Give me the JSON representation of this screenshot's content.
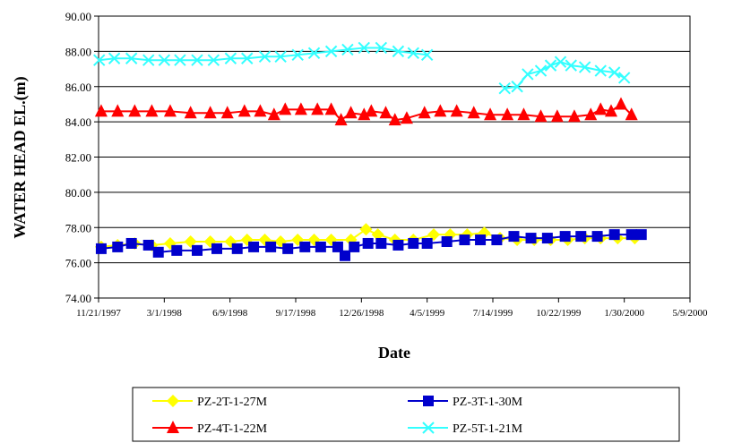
{
  "chart_data": {
    "type": "line",
    "title": "",
    "xlabel": "Date",
    "ylabel": "WATER HEAD EL.(m)",
    "ylim": [
      74,
      90
    ],
    "yticks": [
      "74.00",
      "76.00",
      "78.00",
      "80.00",
      "82.00",
      "84.00",
      "86.00",
      "88.00",
      "90.00"
    ],
    "xlim": [
      "1997-11-21",
      "2000-05-09"
    ],
    "xticks": [
      "11/21/1997",
      "3/1/1998",
      "6/9/1998",
      "9/17/1998",
      "12/26/1998",
      "4/5/1999",
      "7/14/1999",
      "10/22/1999",
      "1/30/2000",
      "5/9/2000"
    ],
    "grid": "horizontal",
    "legend": "bottom",
    "series": [
      {
        "name": "PZ-2T-1-27M",
        "color": "#FFFF00",
        "marker": "diamond",
        "points": [
          [
            "1997-11-25",
            76.9
          ],
          [
            "1997-12-20",
            77.0
          ],
          [
            "1998-01-15",
            77.1
          ],
          [
            "1998-02-10",
            77.0
          ],
          [
            "1998-03-10",
            77.1
          ],
          [
            "1998-04-10",
            77.2
          ],
          [
            "1998-05-10",
            77.2
          ],
          [
            "1998-06-10",
            77.2
          ],
          [
            "1998-07-05",
            77.3
          ],
          [
            "1998-08-01",
            77.3
          ],
          [
            "1998-08-25",
            77.2
          ],
          [
            "1998-09-20",
            77.3
          ],
          [
            "1998-10-15",
            77.3
          ],
          [
            "1998-11-10",
            77.3
          ],
          [
            "1998-12-10",
            77.3
          ],
          [
            "1999-01-02",
            77.9
          ],
          [
            "1999-01-20",
            77.6
          ],
          [
            "1999-02-15",
            77.3
          ],
          [
            "1999-03-15",
            77.3
          ],
          [
            "1999-04-15",
            77.6
          ],
          [
            "1999-05-10",
            77.6
          ],
          [
            "1999-06-05",
            77.6
          ],
          [
            "1999-07-01",
            77.7
          ],
          [
            "1999-07-25",
            77.4
          ],
          [
            "1999-08-20",
            77.3
          ],
          [
            "1999-09-15",
            77.3
          ],
          [
            "1999-10-10",
            77.3
          ],
          [
            "1999-11-05",
            77.3
          ],
          [
            "1999-12-01",
            77.4
          ],
          [
            "1999-12-25",
            77.4
          ],
          [
            "2000-01-20",
            77.4
          ],
          [
            "2000-02-15",
            77.4
          ]
        ]
      },
      {
        "name": "PZ-3T-1-30M",
        "color": "#0000CC",
        "marker": "square",
        "points": [
          [
            "1997-11-25",
            76.8
          ],
          [
            "1997-12-20",
            76.9
          ],
          [
            "1998-01-10",
            77.1
          ],
          [
            "1998-02-05",
            77.0
          ],
          [
            "1998-02-20",
            76.6
          ],
          [
            "1998-03-20",
            76.7
          ],
          [
            "1998-04-20",
            76.7
          ],
          [
            "1998-05-20",
            76.8
          ],
          [
            "1998-06-20",
            76.8
          ],
          [
            "1998-07-15",
            76.9
          ],
          [
            "1998-08-10",
            76.9
          ],
          [
            "1998-09-05",
            76.8
          ],
          [
            "1998-10-01",
            76.9
          ],
          [
            "1998-10-25",
            76.9
          ],
          [
            "1998-11-20",
            76.9
          ],
          [
            "1998-12-01",
            76.4
          ],
          [
            "1998-12-15",
            76.9
          ],
          [
            "1999-01-05",
            77.1
          ],
          [
            "1999-01-25",
            77.1
          ],
          [
            "1999-02-20",
            77.0
          ],
          [
            "1999-03-15",
            77.1
          ],
          [
            "1999-04-05",
            77.1
          ],
          [
            "1999-05-05",
            77.2
          ],
          [
            "1999-06-01",
            77.3
          ],
          [
            "1999-06-25",
            77.3
          ],
          [
            "1999-07-20",
            77.3
          ],
          [
            "1999-08-15",
            77.5
          ],
          [
            "1999-09-10",
            77.4
          ],
          [
            "1999-10-05",
            77.4
          ],
          [
            "1999-11-01",
            77.5
          ],
          [
            "1999-11-25",
            77.5
          ],
          [
            "1999-12-20",
            77.5
          ],
          [
            "2000-01-15",
            77.6
          ],
          [
            "2000-02-10",
            77.6
          ],
          [
            "2000-02-25",
            77.6
          ]
        ]
      },
      {
        "name": "PZ-4T-1-22M",
        "color": "#FF0000",
        "marker": "triangle",
        "points": [
          [
            "1997-11-25",
            84.6
          ],
          [
            "1997-12-20",
            84.6
          ],
          [
            "1998-01-15",
            84.6
          ],
          [
            "1998-02-10",
            84.6
          ],
          [
            "1998-03-10",
            84.6
          ],
          [
            "1998-04-10",
            84.5
          ],
          [
            "1998-05-10",
            84.5
          ],
          [
            "1998-06-05",
            84.5
          ],
          [
            "1998-07-01",
            84.6
          ],
          [
            "1998-07-25",
            84.6
          ],
          [
            "1998-08-15",
            84.4
          ],
          [
            "1998-09-01",
            84.7
          ],
          [
            "1998-09-25",
            84.7
          ],
          [
            "1998-10-20",
            84.7
          ],
          [
            "1998-11-10",
            84.7
          ],
          [
            "1998-11-25",
            84.1
          ],
          [
            "1998-12-10",
            84.5
          ],
          [
            "1998-12-30",
            84.4
          ],
          [
            "1999-01-10",
            84.6
          ],
          [
            "1999-02-01",
            84.5
          ],
          [
            "1999-02-15",
            84.1
          ],
          [
            "1999-03-05",
            84.2
          ],
          [
            "1999-04-01",
            84.5
          ],
          [
            "1999-04-25",
            84.6
          ],
          [
            "1999-05-20",
            84.6
          ],
          [
            "1999-06-15",
            84.5
          ],
          [
            "1999-07-10",
            84.4
          ],
          [
            "1999-08-05",
            84.4
          ],
          [
            "1999-08-30",
            84.4
          ],
          [
            "1999-09-25",
            84.3
          ],
          [
            "1999-10-20",
            84.3
          ],
          [
            "1999-11-15",
            84.3
          ],
          [
            "1999-12-10",
            84.4
          ],
          [
            "1999-12-25",
            84.7
          ],
          [
            "2000-01-10",
            84.6
          ],
          [
            "2000-01-25",
            85.0
          ],
          [
            "2000-02-10",
            84.4
          ]
        ]
      },
      {
        "name": "PZ-5T-1-21M",
        "color": "#33FFFF",
        "marker": "x",
        "points": [
          [
            "1997-11-22",
            87.5
          ],
          [
            "1997-12-15",
            87.6
          ],
          [
            "1998-01-10",
            87.6
          ],
          [
            "1998-02-05",
            87.5
          ],
          [
            "1998-03-01",
            87.5
          ],
          [
            "1998-03-25",
            87.5
          ],
          [
            "1998-04-20",
            87.5
          ],
          [
            "1998-05-15",
            87.5
          ],
          [
            "1998-06-10",
            87.6
          ],
          [
            "1998-07-05",
            87.6
          ],
          [
            "1998-08-01",
            87.7
          ],
          [
            "1998-08-25",
            87.7
          ],
          [
            "1998-09-20",
            87.8
          ],
          [
            "1998-10-15",
            87.9
          ],
          [
            "1998-11-10",
            88.0
          ],
          [
            "1998-12-05",
            88.1
          ],
          [
            "1998-12-30",
            88.2
          ],
          [
            "1999-01-25",
            88.2
          ],
          [
            "1999-02-20",
            88.0
          ],
          [
            "1999-03-15",
            87.9
          ],
          [
            "1999-04-05",
            87.8
          ],
          [
            "1999-08-01",
            85.9
          ],
          [
            "1999-08-20",
            86.0
          ],
          [
            "1999-09-05",
            86.7
          ],
          [
            "1999-09-25",
            86.9
          ],
          [
            "1999-10-10",
            87.2
          ],
          [
            "1999-10-25",
            87.4
          ],
          [
            "1999-11-10",
            87.2
          ],
          [
            "1999-12-01",
            87.1
          ],
          [
            "1999-12-25",
            86.9
          ],
          [
            "2000-01-15",
            86.8
          ],
          [
            "2000-01-30",
            86.5
          ]
        ]
      }
    ]
  }
}
